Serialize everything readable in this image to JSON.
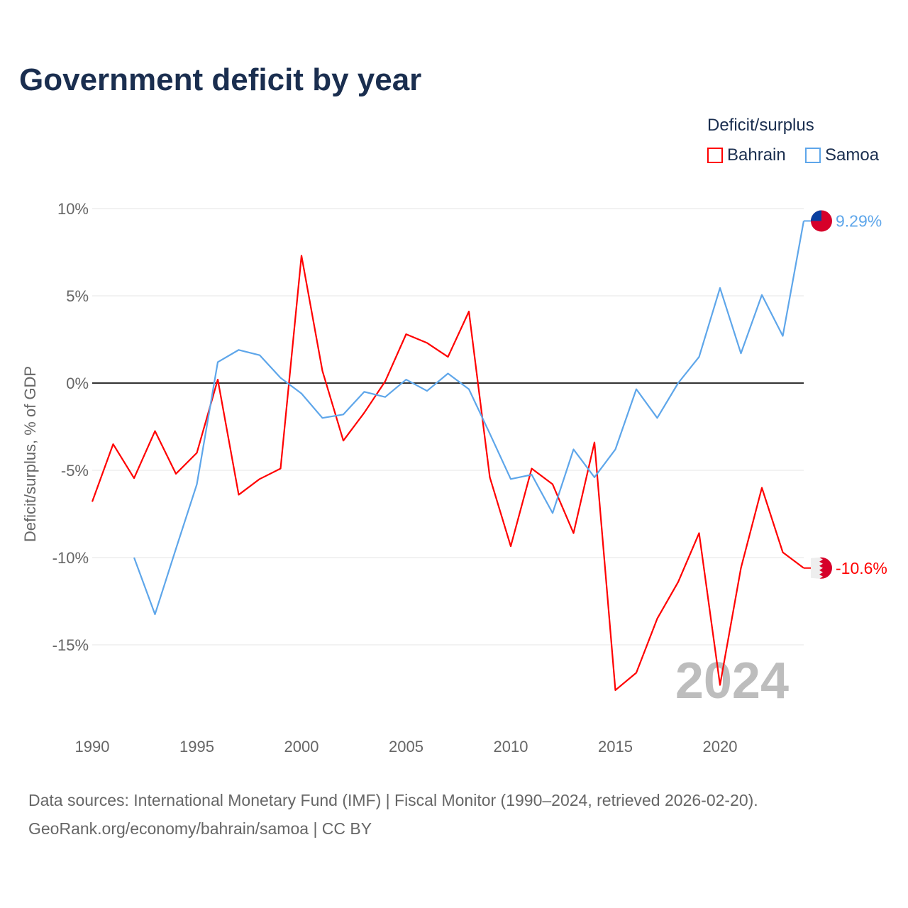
{
  "chart_data": {
    "type": "line",
    "title": "Government deficit by year",
    "xlabel": "",
    "ylabel": "Deficit/surplus, % of GDP",
    "ylim": [
      -19,
      10.5
    ],
    "xlim": [
      1990,
      2024
    ],
    "yticks": [
      10,
      5,
      0,
      -5,
      -10,
      -15
    ],
    "ytick_labels": [
      "10%",
      "5%",
      "0%",
      "-5%",
      "-10%",
      "-15%"
    ],
    "xticks": [
      1990,
      1995,
      2000,
      2005,
      2010,
      2015,
      2020
    ],
    "xtick_labels": [
      "1990",
      "1995",
      "2000",
      "2005",
      "2010",
      "2015",
      "2020"
    ],
    "grid": true,
    "legend_title": "Deficit/surplus",
    "legend_position": "top-right",
    "watermark_year": "2024",
    "series": [
      {
        "name": "Bahrain",
        "color": "#ff0000",
        "end_label": "-10.6%",
        "x": [
          1990,
          1991,
          1992,
          1993,
          1994,
          1995,
          1996,
          1997,
          1998,
          1999,
          2000,
          2001,
          2002,
          2003,
          2004,
          2005,
          2006,
          2007,
          2008,
          2009,
          2010,
          2011,
          2012,
          2013,
          2014,
          2015,
          2016,
          2017,
          2018,
          2019,
          2020,
          2021,
          2022,
          2023,
          2024
        ],
        "values": [
          -6.8,
          -3.5,
          -5.45,
          -2.75,
          -5.2,
          -4.0,
          0.2,
          -6.4,
          -5.5,
          -4.9,
          7.3,
          0.7,
          -3.3,
          -1.7,
          0.1,
          2.8,
          2.3,
          1.5,
          4.1,
          -5.4,
          -9.35,
          -4.9,
          -5.8,
          -8.6,
          -3.4,
          -17.6,
          -16.6,
          -13.5,
          -11.4,
          -8.6,
          -17.3,
          -10.6,
          -6.0,
          -9.7,
          -10.6
        ]
      },
      {
        "name": "Samoa",
        "color": "#5ea6ea",
        "end_label": "9.29%",
        "x": [
          1992,
          1993,
          1994,
          1995,
          1996,
          1997,
          1998,
          1999,
          2000,
          2001,
          2002,
          2003,
          2004,
          2005,
          2006,
          2007,
          2008,
          2009,
          2010,
          2011,
          2012,
          2013,
          2014,
          2015,
          2016,
          2017,
          2018,
          2019,
          2020,
          2021,
          2022,
          2023,
          2024
        ],
        "values": [
          -10.0,
          -13.25,
          -9.5,
          -5.8,
          1.2,
          1.9,
          1.6,
          0.3,
          -0.6,
          -2.0,
          -1.8,
          -0.5,
          -0.8,
          0.2,
          -0.45,
          0.55,
          -0.35,
          -2.9,
          -5.5,
          -5.25,
          -7.45,
          -3.8,
          -5.4,
          -3.8,
          -0.35,
          -2.0,
          0.0,
          1.5,
          5.45,
          1.7,
          5.05,
          2.7,
          9.29
        ]
      }
    ]
  },
  "footer": {
    "line1": "Data sources: International Monetary Fund (IMF) | Fiscal Monitor (1990–2024, retrieved 2026-02-20).",
    "line2": "GeoRank.org/economy/bahrain/samoa | CC BY"
  }
}
